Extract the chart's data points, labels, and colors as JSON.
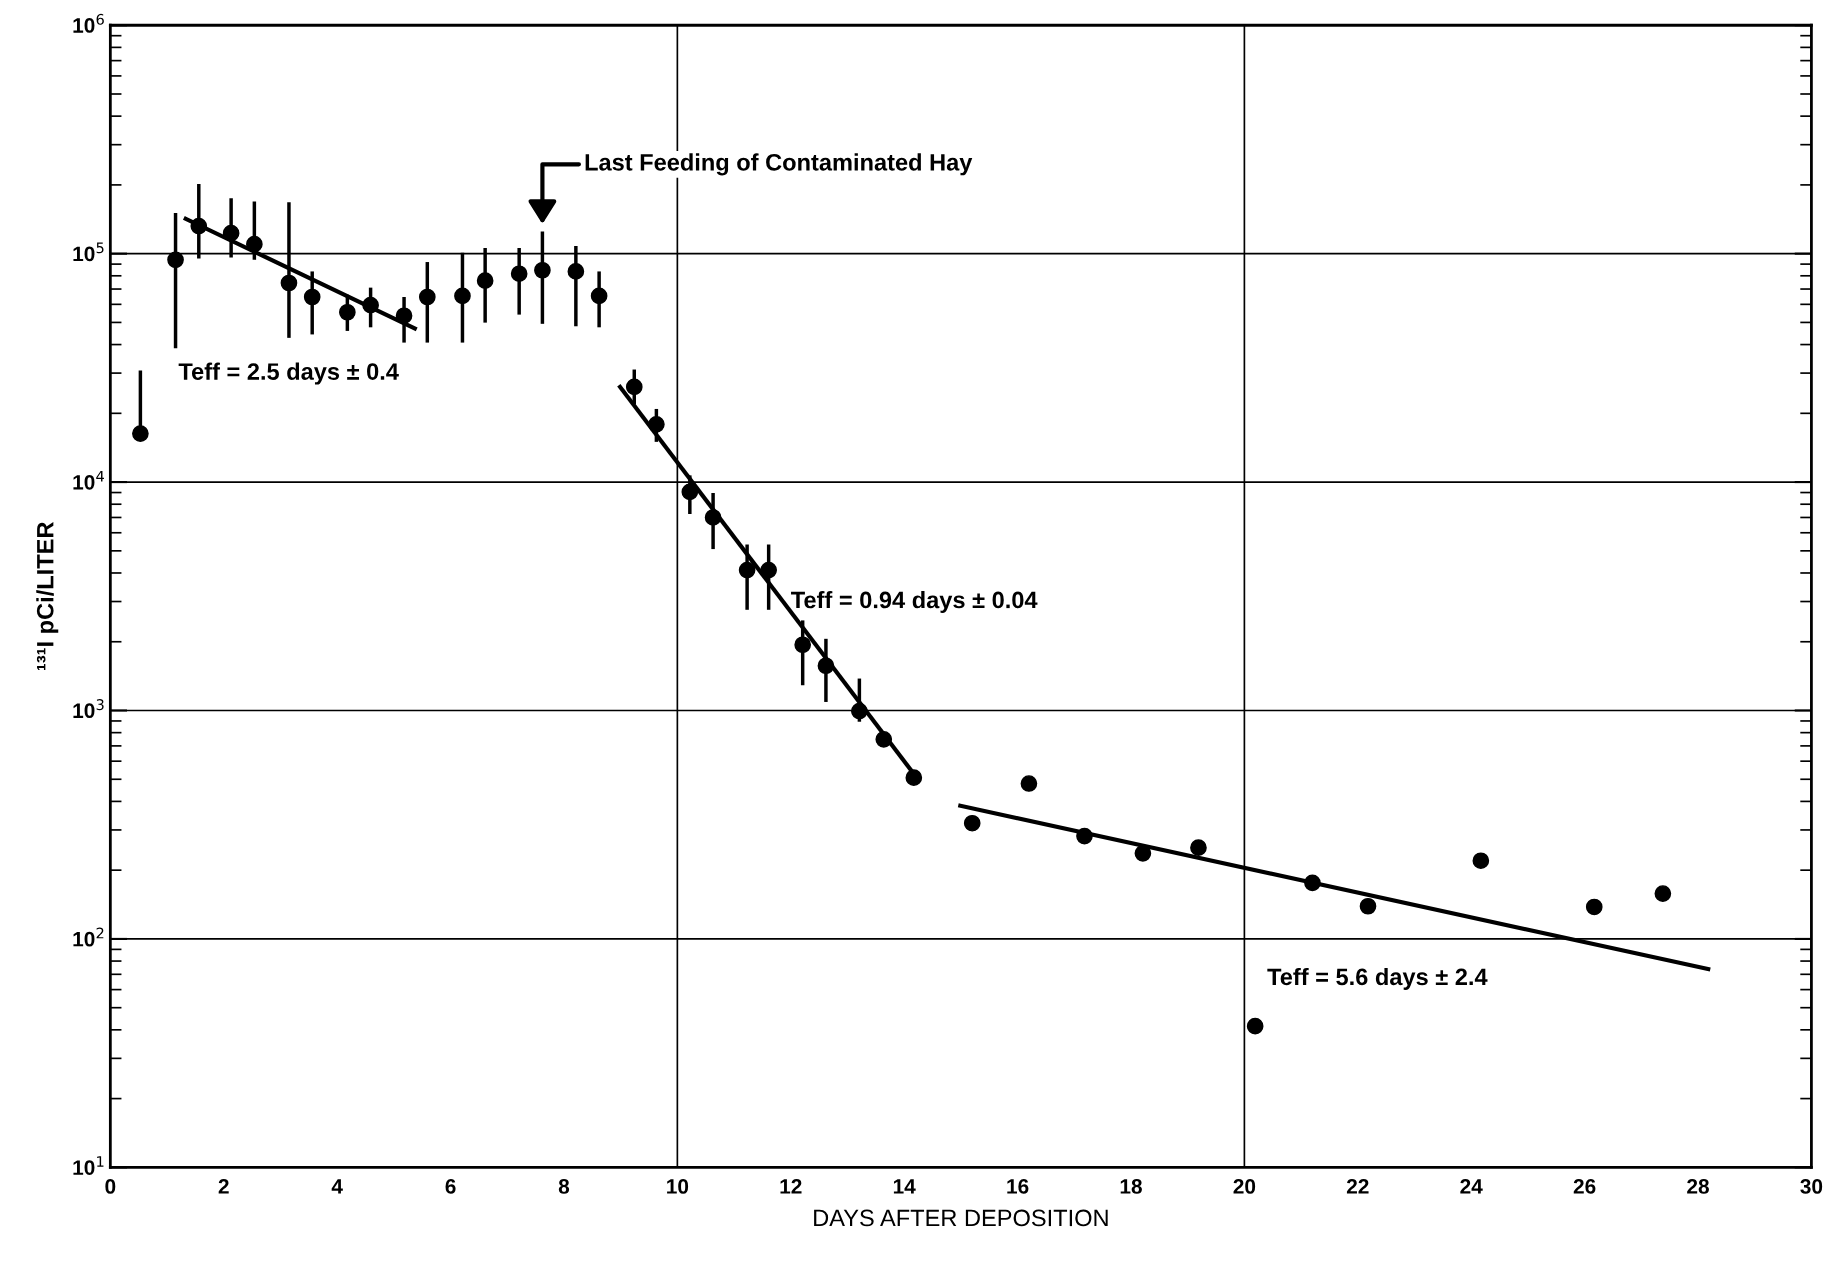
{
  "chart_data": {
    "type": "scatter",
    "xlabel": "DAYS AFTER DEPOSITION",
    "ylabel": "¹³¹I pCi/LITER",
    "log": "y",
    "xlim": [
      0,
      30
    ],
    "xticks": [
      0,
      2,
      4,
      6,
      8,
      10,
      12,
      14,
      16,
      18,
      20,
      22,
      24,
      26,
      28,
      30
    ],
    "ylim": [
      10,
      1000000
    ],
    "yticks": [
      {
        "value": 10,
        "label": "10$^{1}$"
      },
      {
        "value": 100,
        "label": "10$^{2}$"
      },
      {
        "value": 1000,
        "label": "10$^{3}$"
      },
      {
        "value": 10000,
        "label": "10$^{4}$"
      },
      {
        "value": 100000,
        "label": "10$^{5}$"
      },
      {
        "value": 1000000,
        "label": "10$^{6}$"
      }
    ],
    "grid": "y",
    "ref_lines": [
      {
        "axis": "x",
        "value": 10,
        "label": null,
        "color": "#000000"
      },
      {
        "axis": "x",
        "value": 20,
        "label": null,
        "color": "#000000"
      }
    ],
    "series": [
      {
        "color": "#000000",
        "marker": "circle",
        "x": [
          0.53,
          1.15,
          1.56,
          2.13,
          2.54,
          3.15,
          3.56,
          4.18,
          4.59,
          5.18,
          5.59,
          6.21,
          6.61,
          7.21,
          7.62,
          8.21,
          8.62,
          9.24,
          9.63,
          10.22,
          10.63,
          11.23,
          11.61,
          12.21,
          12.62,
          13.21,
          13.64,
          14.17,
          15.2,
          16.2,
          17.18,
          18.21,
          19.19,
          20.19,
          21.2,
          22.18,
          24.17,
          26.17,
          27.38
        ],
        "values": [
          16300,
          94000,
          132000,
          123000,
          110000,
          74400,
          64600,
          55400,
          59500,
          53500,
          64600,
          65300,
          76200,
          81700,
          84600,
          83600,
          65300,
          26100,
          17900,
          9060,
          7000,
          4120,
          4120,
          1940,
          1570,
          993,
          748,
          508,
          321,
          479,
          282,
          237,
          251,
          41.5,
          176,
          139,
          220,
          138,
          158
        ],
        "errors": [
          [
            16300,
            30800
          ],
          [
            38500,
            150700
          ],
          [
            95200,
            202000
          ],
          [
            96300,
            175000
          ],
          [
            94000,
            169000
          ],
          [
            42800,
            168000
          ],
          [
            44300,
            83600
          ],
          [
            45900,
            66100
          ],
          [
            47600,
            71000
          ],
          [
            40800,
            64600
          ],
          [
            40800,
            91900
          ],
          [
            40800,
            101000
          ],
          [
            49900,
            106000
          ],
          [
            54100,
            106000
          ],
          [
            49300,
            125000
          ],
          [
            48100,
            108000
          ],
          [
            47600,
            83600
          ],
          [
            21900,
            31100
          ],
          [
            15000,
            20900
          ],
          [
            7250,
            10700
          ],
          [
            5090,
            8960
          ],
          [
            2760,
            5330
          ],
          [
            2760,
            5330
          ],
          [
            1290,
            2480
          ],
          [
            1090,
            2060
          ],
          [
            893,
            1380
          ],
          null,
          null,
          null,
          null,
          null,
          null,
          null,
          null,
          null,
          null,
          null,
          null,
          null
        ]
      },
      {
        "type": "line",
        "color": "#000000",
        "marker": "none",
        "line_style": "solid",
        "x": [
          1.33,
          5.37
        ],
        "values": [
          142000,
          47000
        ]
      },
      {
        "type": "line",
        "color": "#000000",
        "marker": "none",
        "line_style": "solid",
        "x": [
          8.99,
          14.19
        ],
        "values": [
          26100,
          520
        ]
      },
      {
        "type": "line",
        "color": "#000000",
        "marker": "none",
        "line_style": "solid",
        "x": [
          14.99,
          28.18
        ],
        "values": [
          383,
          73.8
        ]
      }
    ],
    "annotations": [
      {
        "text": "Last Feeding of Contaminated Hay",
        "x": 7.62,
        "y": 131000
      },
      "Teff = 2.5 days ± 0.4",
      "Teff = 0.94 days ± 0.04",
      "Teff = 5.6 days ± 2.4"
    ]
  }
}
